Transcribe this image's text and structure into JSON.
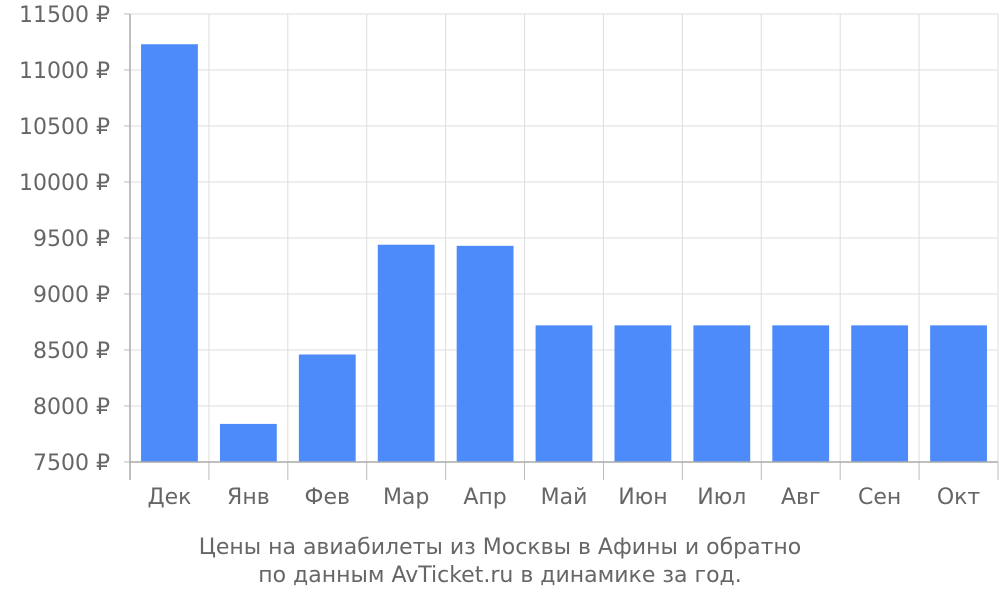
{
  "chart_data": {
    "type": "bar",
    "categories": [
      "Дек",
      "Янв",
      "Фев",
      "Мар",
      "Апр",
      "Май",
      "Июн",
      "Июл",
      "Авг",
      "Сен",
      "Окт"
    ],
    "values": [
      11230,
      7840,
      8460,
      9440,
      9430,
      8720,
      8720,
      8720,
      8720,
      8720,
      8720
    ],
    "ylim": [
      7500,
      11500
    ],
    "yticks": [
      7500,
      8000,
      8500,
      9000,
      9500,
      10000,
      10500,
      11000,
      11500
    ],
    "currency_suffix": " ₽",
    "bar_color": "#4d8afa",
    "grid": true,
    "caption_line1": "Цены на авиабилеты из Москвы в Афины и обратно",
    "caption_line2": "по данным AvTicket.ru в динамике за год."
  }
}
